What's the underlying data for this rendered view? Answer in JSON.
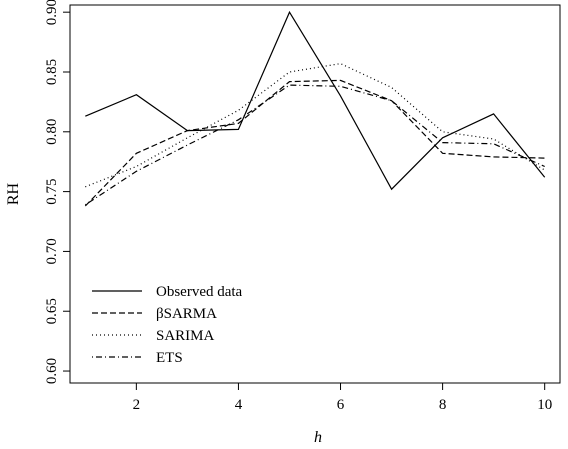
{
  "chart_data": {
    "type": "line",
    "title": "",
    "xlabel": "h",
    "ylabel": "RH",
    "xlim": [
      0.7,
      10.3
    ],
    "ylim": [
      0.59,
      0.906
    ],
    "xticks": [
      2,
      4,
      6,
      8,
      10
    ],
    "xtick_labels": [
      "2",
      "4",
      "6",
      "8",
      "10"
    ],
    "yticks": [
      0.6,
      0.65,
      0.7,
      0.75,
      0.8,
      0.85,
      0.9
    ],
    "ytick_labels": [
      "0.60",
      "0.65",
      "0.70",
      "0.75",
      "0.80",
      "0.85",
      "0.90"
    ],
    "grid": false,
    "legend_position": "bottom-left",
    "x": [
      1,
      2,
      3,
      4,
      5,
      6,
      7,
      8,
      9,
      10
    ],
    "series": [
      {
        "name": "Observed data",
        "dash": "solid",
        "color": "#000000",
        "values": [
          0.813,
          0.831,
          0.801,
          0.802,
          0.9,
          0.83,
          0.752,
          0.795,
          0.815,
          0.762
        ]
      },
      {
        "name": "βSARMA",
        "dash": "dashed",
        "color": "#000000",
        "values": [
          0.738,
          0.782,
          0.801,
          0.807,
          0.842,
          0.843,
          0.826,
          0.782,
          0.779,
          0.778
        ]
      },
      {
        "name": "SARIMA",
        "dash": "dotted",
        "color": "#000000",
        "values": [
          0.754,
          0.771,
          0.795,
          0.818,
          0.85,
          0.857,
          0.837,
          0.8,
          0.794,
          0.768
        ]
      },
      {
        "name": "ETS",
        "dash": "dotdash",
        "color": "#000000",
        "values": [
          0.739,
          0.767,
          0.789,
          0.81,
          0.839,
          0.838,
          0.826,
          0.791,
          0.79,
          0.771
        ]
      }
    ]
  }
}
